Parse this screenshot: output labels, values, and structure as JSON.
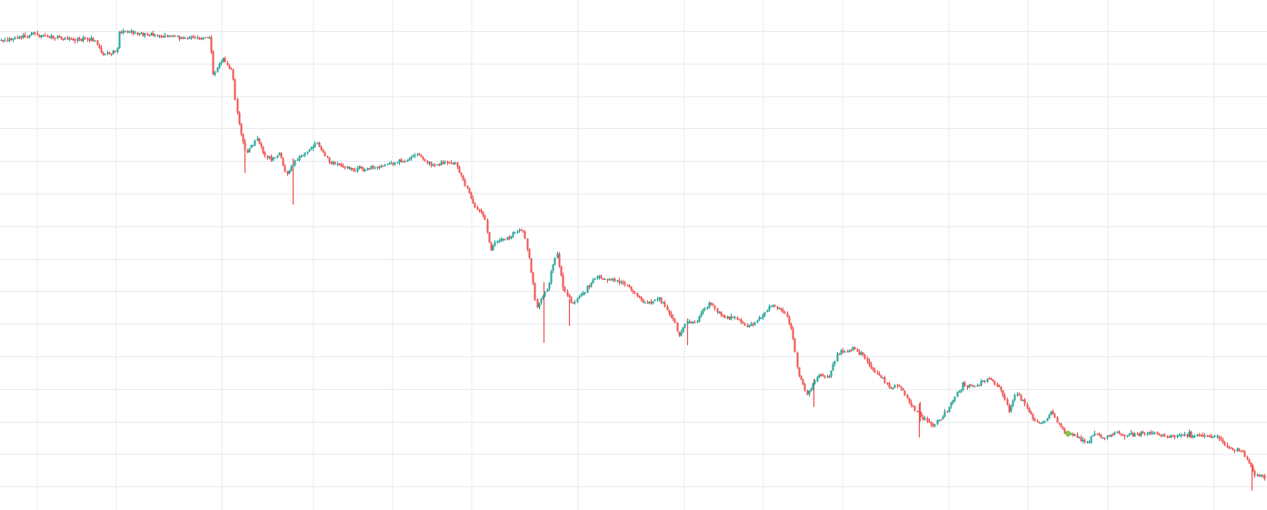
{
  "chart_data": {
    "type": "line",
    "title": "",
    "xlabel": "",
    "ylabel": "",
    "grid": true,
    "legend": "none",
    "colors": {
      "background": "#ffffff",
      "grid": "#e7ecf2",
      "up": "#26a69a",
      "down": "#ef5350",
      "marker": "#8bc34a"
    },
    "xlim": [
      0,
      100
    ],
    "ylim": [
      0,
      100
    ],
    "series": [
      {
        "x": [
          0,
          2.5,
          5,
          7.5,
          8.0,
          9.2,
          9.3,
          11.0,
          13.0,
          16.0,
          16.6,
          16.7,
          17.5,
          18.3,
          18.6,
          19.0,
          19.4,
          19.9,
          20.3,
          21.0,
          21.5,
          22.0,
          22.6,
          23.1,
          24.0,
          25.0,
          26.0,
          28.0,
          30.0,
          32.0,
          33.0,
          34.0,
          35.0,
          36.0,
          36.8,
          37.5,
          38.2,
          38.7,
          39.3,
          40.0,
          40.6,
          41.3,
          41.9,
          42.3,
          43.2,
          43.9,
          44.4,
          45.2,
          46.0,
          47.0,
          48.5,
          49.5,
          50.0,
          51.0,
          52.0,
          53.0,
          53.6,
          54.2,
          54.8,
          55.4,
          56.0,
          57.0,
          58.0,
          59.0,
          60.0,
          61.0,
          62.0,
          62.5,
          63.0,
          63.7,
          64.6,
          65.4,
          66.0,
          66.4,
          66.8,
          67.3,
          68.0,
          69.0,
          69.6,
          70.4,
          71.0,
          71.7,
          72.6,
          73.6,
          74.4,
          75.4,
          76.0,
          77.0,
          78.0,
          79.0,
          79.6,
          80.2,
          81.0,
          81.7,
          82.4,
          83.0,
          83.5,
          84.1,
          84.8,
          85.6,
          86.5,
          87.2,
          88.0,
          89.0,
          90.0,
          91.0,
          92.0,
          93.0,
          94.0,
          95.0,
          96.0,
          97.0,
          98.0,
          98.6,
          99.0,
          100.0
        ],
        "y": [
          94.2,
          95.6,
          94.6,
          94.4,
          91.6,
          91.6,
          96.2,
          95.6,
          95.2,
          94.8,
          95.2,
          86.6,
          90.6,
          87.8,
          80.8,
          74.9,
          71.2,
          72.8,
          73.9,
          70.1,
          69.9,
          71.1,
          66.6,
          68.9,
          71.1,
          73.2,
          69.1,
          67.7,
          68.4,
          69.6,
          71.0,
          68.5,
          69.1,
          68.8,
          64.0,
          59.8,
          58.1,
          51.1,
          53.1,
          53.3,
          54.9,
          55.2,
          46.8,
          39.3,
          43.2,
          51.4,
          43.2,
          40.0,
          42.2,
          45.6,
          44.9,
          43.9,
          42.1,
          40.1,
          41.3,
          37.3,
          33.5,
          36.7,
          36.1,
          38.3,
          40.1,
          37.4,
          37.1,
          35.3,
          37.1,
          40.0,
          37.8,
          34.2,
          25.5,
          21.5,
          25.5,
          25.1,
          29.1,
          30.4,
          30.2,
          30.8,
          29.8,
          26.0,
          24.8,
          22.6,
          23.4,
          19.8,
          16.9,
          15.0,
          16.9,
          21.1,
          23.3,
          23.0,
          24.9,
          22.3,
          17.7,
          21.8,
          18.8,
          15.7,
          15.7,
          17.9,
          15.7,
          13.0,
          12.9,
          11.3,
          13.1,
          12.1,
          13.5,
          12.9,
          13.1,
          13.5,
          12.7,
          13.1,
          13.1,
          12.8,
          12.9,
          10.1,
          9.7,
          6.9,
          4.8,
          3.9
        ]
      }
    ],
    "annotations": [
      {
        "type": "dot",
        "x": 84.3,
        "y": 13.3
      }
    ]
  }
}
